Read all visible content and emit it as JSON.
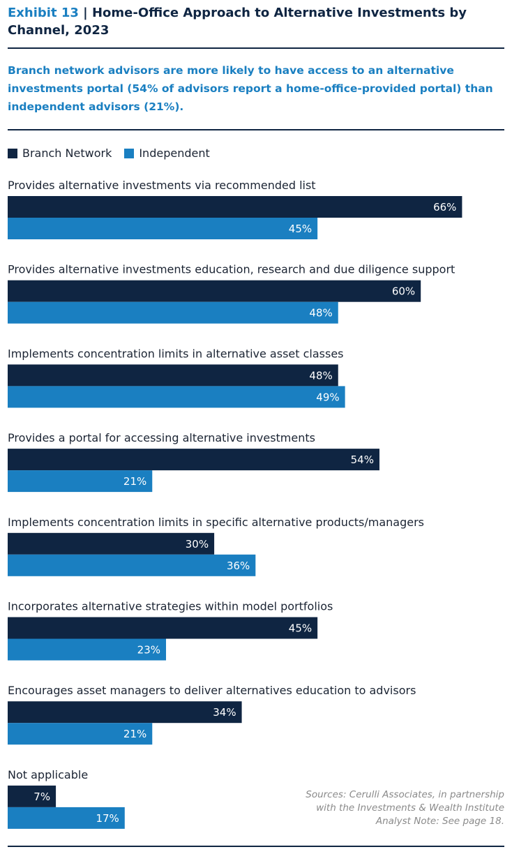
{
  "header": {
    "exhibit": "Exhibit 13",
    "separator": " | ",
    "title": "Home-Office Approach to Alternative Investments by Channel, 2023",
    "subtitle": "Branch network advisors are more likely to have access to an alternative investments portal (54% of advisors report a home-office-provided portal) than independent advisors (21%)."
  },
  "colors": {
    "branch": "#0f2542",
    "independent": "#1a7fc1"
  },
  "chart_data": {
    "type": "bar",
    "orientation": "horizontal",
    "title": "Home-Office Approach to Alternative Investments by Channel, 2023",
    "categories": [
      "Provides alternative investments via recommended list",
      "Provides alternative investments education, research and due diligence support",
      "Implements concentration limits in alternative asset classes",
      "Provides a portal for accessing alternative investments",
      "Implements concentration limits in specific alternative products/managers",
      "Incorporates alternative strategies within model portfolios",
      "Encourages asset managers to deliver alternatives education to advisors",
      "Not applicable"
    ],
    "series": [
      {
        "name": "Branch Network",
        "values": [
          66,
          60,
          48,
          54,
          30,
          45,
          34,
          7
        ]
      },
      {
        "name": "Independent",
        "values": [
          45,
          48,
          49,
          21,
          36,
          23,
          21,
          17
        ]
      }
    ],
    "value_suffix": "%",
    "xlim": [
      0,
      100
    ],
    "legend": "top-left",
    "grid": false
  },
  "source": {
    "line1": "Sources: Cerulli Associates, in partnership",
    "line2": "with the Investments & Wealth Institute",
    "line3": "Analyst Note: See page 18."
  }
}
